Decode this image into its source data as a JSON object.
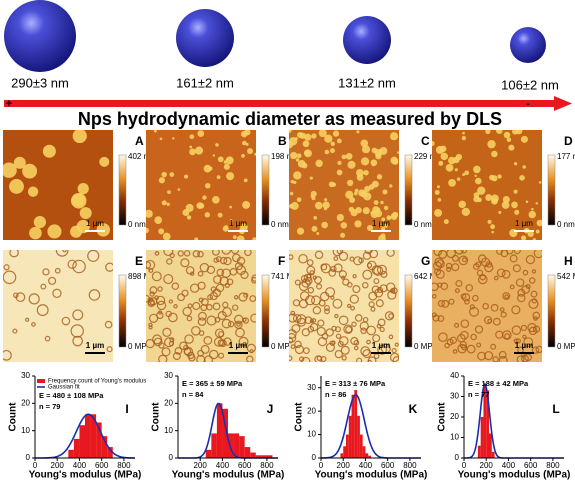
{
  "spheres": [
    {
      "label": "290±3 nm"
    },
    {
      "label": "161±2 nm"
    },
    {
      "label": "131±2 nm"
    },
    {
      "label": "106±2 nm"
    }
  ],
  "arrow": {
    "plus": "+",
    "minus": "-"
  },
  "title": "Nps hydrodynamic diameter as measured by DLS",
  "height_maps": [
    {
      "letter": "A",
      "max": "402 nm",
      "min": "0 nm",
      "scale": "1 µm"
    },
    {
      "letter": "B",
      "max": "198 nm",
      "min": "0 nm",
      "scale": "1 µm"
    },
    {
      "letter": "C",
      "max": "229 nm",
      "min": "0 nm",
      "scale": "1 µm"
    },
    {
      "letter": "D",
      "max": "177 nm",
      "min": "0 nm",
      "scale": "1 µm"
    }
  ],
  "modulus_maps": [
    {
      "letter": "E",
      "max": "898 MPa",
      "min": "0 MPa",
      "scale": "1 µm"
    },
    {
      "letter": "F",
      "max": "741 MPa",
      "min": "0 MPa",
      "scale": "1 µm"
    },
    {
      "letter": "G",
      "max": "642 MPa",
      "min": "0 MPa",
      "scale": "1 µm"
    },
    {
      "letter": "H",
      "max": "542 MPa",
      "min": "0 MPa",
      "scale": "1 µm"
    }
  ],
  "chart_data": [
    {
      "type": "histogram",
      "letter": "I",
      "x_label": "Young's modulus (MPa)",
      "y_label": "Count",
      "annotations": [
        "E = 480 ± 108 MPa",
        "n = 79"
      ],
      "legend": [
        "Frequency count of Young's modulus",
        "Gaussian fit"
      ],
      "bins": [
        300,
        350,
        400,
        450,
        500,
        550,
        600,
        650,
        700
      ],
      "counts": [
        3,
        7,
        12,
        16,
        16,
        13,
        8,
        4
      ],
      "color": "#e8181e",
      "fit": {
        "mean": 480,
        "sd": 108,
        "amplitude": 16,
        "color": "#1a2fb0"
      },
      "xlim": [
        0,
        900
      ],
      "xticks": [
        0,
        200,
        400,
        600,
        800
      ],
      "ylim": [
        0,
        30
      ],
      "yticks": [
        0,
        10,
        20,
        30
      ]
    },
    {
      "type": "histogram",
      "letter": "J",
      "x_label": "Young's modulus (MPa)",
      "y_label": "Count",
      "annotations": [
        "E = 365 ± 59 MPa",
        "n = 84"
      ],
      "bins": [
        250,
        300,
        350,
        400,
        450,
        500,
        550,
        600,
        650,
        700,
        750,
        800,
        850
      ],
      "counts": [
        3,
        9,
        20,
        18,
        9,
        9,
        8,
        4,
        2,
        1,
        1,
        1
      ],
      "color": "#e8181e",
      "fit": {
        "mean": 365,
        "sd": 59,
        "amplitude": 20,
        "color": "#1a2fb0"
      },
      "xlim": [
        0,
        900
      ],
      "xticks": [
        200,
        400,
        600,
        800
      ],
      "ylim": [
        0,
        30
      ],
      "yticks": [
        0,
        10,
        20,
        30
      ]
    },
    {
      "type": "histogram",
      "letter": "K",
      "x_label": "Young's modulus (MPa)",
      "y_label": "Count",
      "annotations": [
        "E = 313 ± 76 MPa",
        "n = 86"
      ],
      "bins": [
        175,
        200,
        225,
        250,
        275,
        300,
        325,
        350,
        375,
        400,
        425,
        450
      ],
      "counts": [
        2,
        5,
        10,
        18,
        27,
        29,
        18,
        10,
        5,
        2,
        1
      ],
      "color": "#e8181e",
      "fit": {
        "mean": 313,
        "sd": 76,
        "amplitude": 27,
        "color": "#1a2fb0"
      },
      "xlim": [
        0,
        900
      ],
      "xticks": [
        0,
        200,
        400,
        600,
        800
      ],
      "ylim": [
        0,
        35
      ],
      "yticks": [
        0,
        10,
        20,
        30
      ]
    },
    {
      "type": "histogram",
      "letter": "L",
      "x_label": "Young's modulus (MPa)",
      "y_label": "Count",
      "annotations": [
        "E = 188 ± 42 MPa",
        "n = 77"
      ],
      "bins": [
        125,
        150,
        175,
        200,
        225,
        250,
        275
      ],
      "counts": [
        6,
        20,
        35,
        33,
        12,
        3
      ],
      "color": "#e8181e",
      "fit": {
        "mean": 188,
        "sd": 42,
        "amplitude": 36,
        "color": "#1a2fb0"
      },
      "xlim": [
        0,
        900
      ],
      "xticks": [
        0,
        200,
        400,
        600,
        800
      ],
      "ylim": [
        0,
        40
      ],
      "yticks": [
        0,
        10,
        20,
        30,
        40
      ]
    }
  ]
}
